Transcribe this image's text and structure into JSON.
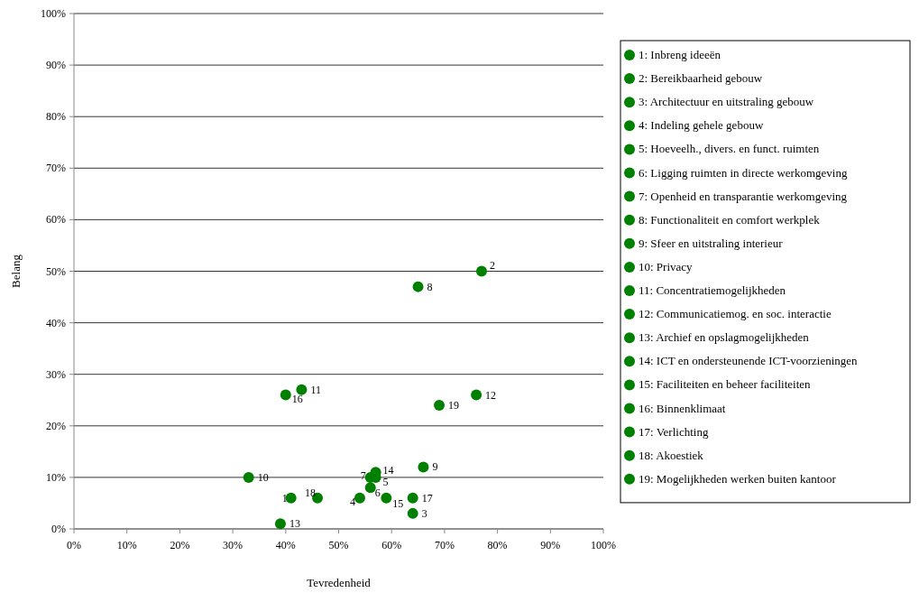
{
  "chart_data": {
    "type": "scatter",
    "xlabel": "Tevredenheid",
    "ylabel": "Belang",
    "xlim": [
      0,
      100
    ],
    "ylim": [
      0,
      100
    ],
    "xticks": [
      {
        "value": 0,
        "label": "0%"
      },
      {
        "value": 10,
        "label": "10%"
      },
      {
        "value": 20,
        "label": "20%"
      },
      {
        "value": 30,
        "label": "30%"
      },
      {
        "value": 40,
        "label": "40%"
      },
      {
        "value": 50,
        "label": "50%"
      },
      {
        "value": 60,
        "label": "60%"
      },
      {
        "value": 70,
        "label": "70%"
      },
      {
        "value": 80,
        "label": "80%"
      },
      {
        "value": 90,
        "label": "90%"
      },
      {
        "value": 100,
        "label": "100%"
      }
    ],
    "yticks": [
      {
        "value": 0,
        "label": "0%"
      },
      {
        "value": 10,
        "label": "10%"
      },
      {
        "value": 20,
        "label": "20%"
      },
      {
        "value": 30,
        "label": "30%"
      },
      {
        "value": 40,
        "label": "40%"
      },
      {
        "value": 50,
        "label": "50%"
      },
      {
        "value": 60,
        "label": "60%"
      },
      {
        "value": 70,
        "label": "70%"
      },
      {
        "value": 80,
        "label": "80%"
      },
      {
        "value": 90,
        "label": "90%"
      },
      {
        "value": 100,
        "label": "100%"
      }
    ],
    "grid": "y",
    "legend": "right",
    "marker": "circle",
    "series": [
      {
        "name": "1: Inbreng ideeën",
        "color": "#008000",
        "x": [
          41
        ],
        "values": [
          6
        ]
      },
      {
        "name": "2: Bereikbaarheid gebouw",
        "color": "#008000",
        "x": [
          77
        ],
        "values": [
          50
        ]
      },
      {
        "name": "3: Architectuur en uitstraling gebouw",
        "color": "#008000",
        "x": [
          64
        ],
        "values": [
          3
        ]
      },
      {
        "name": "4: Indeling gehele gebouw",
        "color": "#008000",
        "x": [
          54
        ],
        "values": [
          6
        ]
      },
      {
        "name": "5: Hoeveelh., divers. en funct. ruimten",
        "color": "#008000",
        "x": [
          57
        ],
        "values": [
          10
        ]
      },
      {
        "name": "6: Ligging ruimten in directe werkomgeving",
        "color": "#008000",
        "x": [
          56
        ],
        "values": [
          8
        ]
      },
      {
        "name": "7: Openheid en transparantie werkomgeving",
        "color": "#008000",
        "x": [
          56
        ],
        "values": [
          10
        ]
      },
      {
        "name": "8: Functionaliteit en comfort werkplek",
        "color": "#008000",
        "x": [
          65
        ],
        "values": [
          47
        ]
      },
      {
        "name": "9: Sfeer en uitstraling interieur",
        "color": "#008000",
        "x": [
          66
        ],
        "values": [
          12
        ]
      },
      {
        "name": "10: Privacy",
        "color": "#008000",
        "x": [
          33
        ],
        "values": [
          10
        ]
      },
      {
        "name": "11: Concentratiemogelijkheden",
        "color": "#008000",
        "x": [
          43
        ],
        "values": [
          27
        ]
      },
      {
        "name": "12: Communicatiemog. en soc. interactie",
        "color": "#008000",
        "x": [
          76
        ],
        "values": [
          26
        ]
      },
      {
        "name": "13: Archief en opslagmogelijkheden",
        "color": "#008000",
        "x": [
          39
        ],
        "values": [
          1
        ]
      },
      {
        "name": "14: ICT en ondersteunende ICT-voorzieningen",
        "color": "#008000",
        "x": [
          57
        ],
        "values": [
          11
        ]
      },
      {
        "name": "15: Faciliteiten en beheer faciliteiten",
        "color": "#008000",
        "x": [
          59
        ],
        "values": [
          6
        ]
      },
      {
        "name": "16: Binnenklimaat",
        "color": "#008000",
        "x": [
          40
        ],
        "values": [
          26
        ]
      },
      {
        "name": "17: Verlichting",
        "color": "#008000",
        "x": [
          64
        ],
        "values": [
          6
        ]
      },
      {
        "name": "18: Akoestiek",
        "color": "#008000",
        "x": [
          46
        ],
        "values": [
          6
        ]
      },
      {
        "name": "19: Mogelijkheden werken buiten kantoor",
        "color": "#008000",
        "x": [
          69
        ],
        "values": [
          24
        ]
      }
    ],
    "annotations": [
      {
        "text": "1",
        "x": 41,
        "y": 6
      },
      {
        "text": "2",
        "x": 77,
        "y": 50
      },
      {
        "text": "3",
        "x": 64,
        "y": 3
      },
      {
        "text": "4",
        "x": 54,
        "y": 6
      },
      {
        "text": "5",
        "x": 57,
        "y": 10
      },
      {
        "text": "6",
        "x": 56,
        "y": 8
      },
      {
        "text": "7",
        "x": 56,
        "y": 10
      },
      {
        "text": "8",
        "x": 65,
        "y": 47
      },
      {
        "text": "9",
        "x": 66,
        "y": 12
      },
      {
        "text": "10",
        "x": 33,
        "y": 10
      },
      {
        "text": "11",
        "x": 43,
        "y": 27
      },
      {
        "text": "12",
        "x": 76,
        "y": 26
      },
      {
        "text": "13",
        "x": 39,
        "y": 1
      },
      {
        "text": "14",
        "x": 57,
        "y": 11
      },
      {
        "text": "15",
        "x": 59,
        "y": 6
      },
      {
        "text": "16",
        "x": 40,
        "y": 26
      },
      {
        "text": "17",
        "x": 64,
        "y": 6
      },
      {
        "text": "18",
        "x": 46,
        "y": 6
      },
      {
        "text": "19",
        "x": 69,
        "y": 24
      }
    ]
  }
}
